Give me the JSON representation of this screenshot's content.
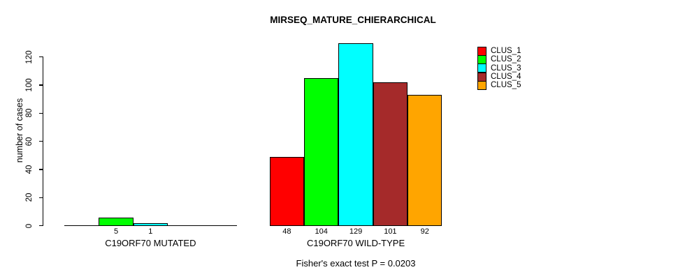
{
  "chart_data": {
    "type": "bar",
    "title": "MIRSEQ_MATURE_CHIERARCHICAL",
    "ylabel": "number of cases",
    "xlabel": "",
    "ylim": [
      0,
      130
    ],
    "yticks": [
      0,
      20,
      40,
      60,
      80,
      100,
      120
    ],
    "grid": false,
    "categories": [
      "CLUS_1",
      "CLUS_2",
      "CLUS_3",
      "CLUS_4",
      "CLUS_5"
    ],
    "legend": {
      "position": "right",
      "entries": [
        {
          "label": "CLUS_1",
          "color": "#FF0000"
        },
        {
          "label": "CLUS_2",
          "color": "#00FF00"
        },
        {
          "label": "CLUS_3",
          "color": "#00FFFF"
        },
        {
          "label": "CLUS_4",
          "color": "#A52A2A"
        },
        {
          "label": "CLUS_5",
          "color": "#FFA500"
        }
      ]
    },
    "groups": [
      {
        "label": "C19ORF70 MUTATED",
        "values": [
          0,
          5,
          1,
          0,
          0
        ],
        "bar_labels": [
          "",
          "5",
          "1",
          "",
          ""
        ]
      },
      {
        "label": "C19ORF70 WILD-TYPE",
        "values": [
          48,
          104,
          129,
          101,
          92
        ],
        "bar_labels": [
          "48",
          "104",
          "129",
          "101",
          "92"
        ]
      }
    ],
    "annotation": "Fisher's exact test P = 0.0203"
  }
}
